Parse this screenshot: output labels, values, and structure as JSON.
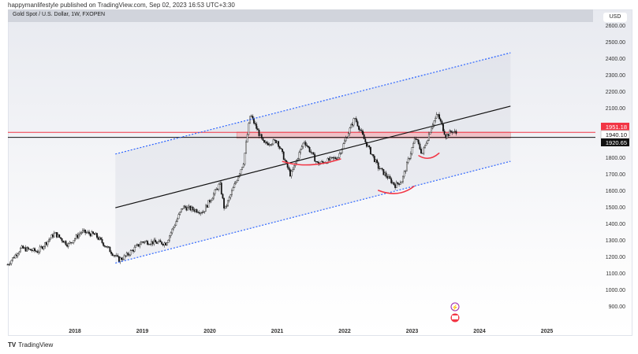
{
  "header": {
    "published": "happymanlifestyle published on TradingView.com, Sep 02, 2023 16:53 UTC+3:30",
    "title": "Gold Spot / U.S. Dollar, 1W, FXOPEN",
    "currency": "USD"
  },
  "footer": {
    "brand": "TradingView",
    "logo": "TV"
  },
  "colors": {
    "up": "#111111",
    "red": "#f23645",
    "blue": "#2962ff",
    "zone": "#f3b6bd"
  },
  "chart_data": {
    "type": "candlestick",
    "title": "Gold Spot / U.S. Dollar, 1W, FXOPEN",
    "x_ticks": [
      "2018",
      "2019",
      "2020",
      "2021",
      "2022",
      "2023",
      "2024",
      "2025"
    ],
    "y_ticks": [
      "2600.00",
      "2500.00",
      "2400.00",
      "2300.00",
      "2200.00",
      "2100.00",
      "1800.00",
      "1700.00",
      "1600.00",
      "1500.00",
      "1400.00",
      "1300.00",
      "1200.00",
      "1100.00",
      "1000.00",
      "900.00"
    ],
    "ylim": [
      800,
      2650
    ],
    "xlim": [
      2017.0,
      2026.2
    ],
    "price_path": [
      [
        2017.0,
        1150
      ],
      [
        2017.2,
        1250
      ],
      [
        2017.45,
        1230
      ],
      [
        2017.7,
        1340
      ],
      [
        2017.9,
        1270
      ],
      [
        2018.1,
        1350
      ],
      [
        2018.3,
        1330
      ],
      [
        2018.65,
        1180
      ],
      [
        2018.75,
        1200
      ],
      [
        2019.0,
        1290
      ],
      [
        2019.35,
        1280
      ],
      [
        2019.6,
        1500
      ],
      [
        2019.9,
        1470
      ],
      [
        2020.15,
        1640
      ],
      [
        2020.22,
        1480
      ],
      [
        2020.5,
        1770
      ],
      [
        2020.6,
        2060
      ],
      [
        2020.8,
        1880
      ],
      [
        2021.0,
        1900
      ],
      [
        2021.2,
        1690
      ],
      [
        2021.4,
        1900
      ],
      [
        2021.6,
        1760
      ],
      [
        2021.9,
        1800
      ],
      [
        2022.15,
        2040
      ],
      [
        2022.3,
        1900
      ],
      [
        2022.5,
        1740
      ],
      [
        2022.75,
        1630
      ],
      [
        2022.85,
        1660
      ],
      [
        2023.05,
        1920
      ],
      [
        2023.15,
        1820
      ],
      [
        2023.3,
        2000
      ],
      [
        2023.38,
        2060
      ],
      [
        2023.5,
        1930
      ],
      [
        2023.6,
        1960
      ],
      [
        2023.67,
        1940
      ]
    ],
    "price_labels": [
      {
        "text": "1951.18",
        "price": 1951.18,
        "color": "#f23645"
      },
      {
        "text": "1940.10",
        "price": 1940.1,
        "color": "#ffffff"
      },
      {
        "text": "1920.65",
        "price": 1920.65,
        "color": "#111111"
      }
    ],
    "drawings": {
      "channel_upper": [
        [
          2018.6,
          1820
        ],
        [
          2024.46,
          2433
        ]
      ],
      "channel_mid": [
        [
          2018.6,
          1495
        ],
        [
          2024.46,
          2110
        ]
      ],
      "channel_lower": [
        [
          2018.6,
          1160
        ],
        [
          2024.46,
          1776
        ]
      ],
      "resistance": 1951.18,
      "support": 1920.65,
      "zone": {
        "from": 2020.4,
        "to": 2024.46,
        "low": 1915,
        "high": 1953
      },
      "red_curves": [
        [
          [
            2021.08,
            1775
          ],
          [
            2021.45,
            1755
          ],
          [
            2021.94,
            1790
          ]
        ],
        [
          [
            2022.5,
            1600
          ],
          [
            2022.8,
            1580
          ],
          [
            2023.03,
            1625
          ]
        ],
        [
          [
            2023.1,
            1810
          ],
          [
            2023.25,
            1800
          ],
          [
            2023.4,
            1825
          ]
        ]
      ]
    }
  }
}
